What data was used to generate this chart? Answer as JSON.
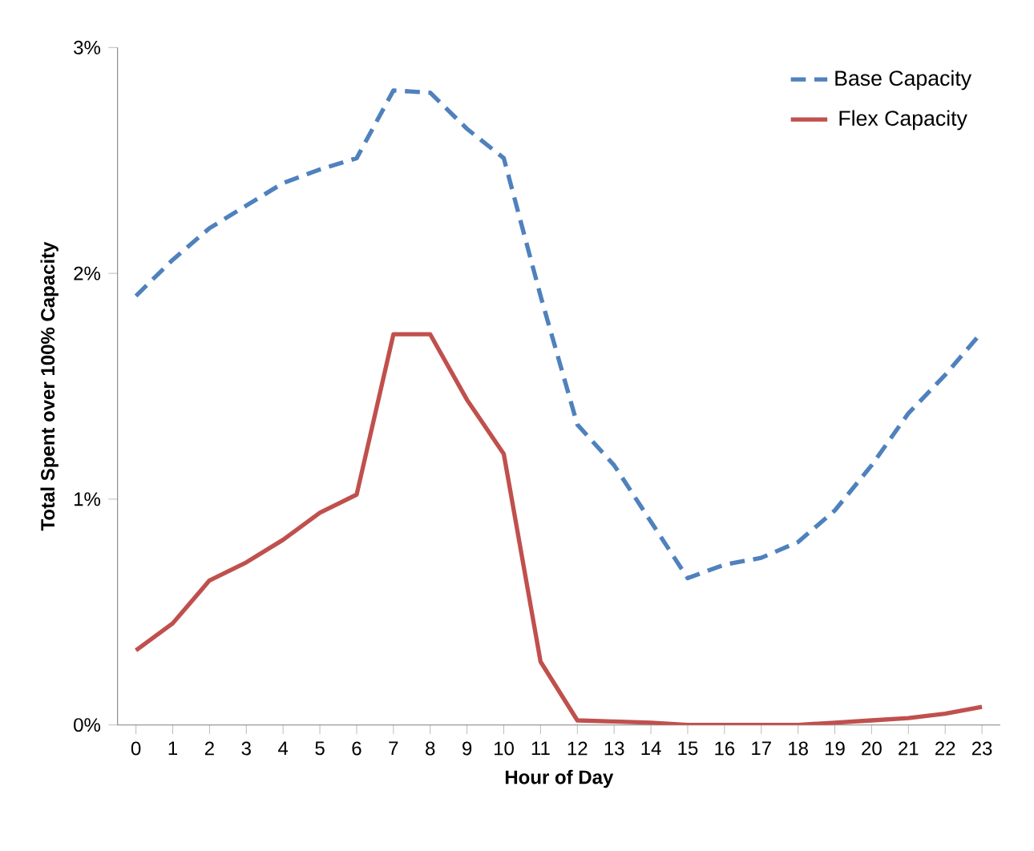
{
  "chart_data": {
    "type": "line",
    "xlabel": "Hour of Day",
    "ylabel": "Total Spent over 100% Capacity",
    "categories": [
      "0",
      "1",
      "2",
      "3",
      "4",
      "5",
      "6",
      "7",
      "8",
      "9",
      "10",
      "11",
      "12",
      "13",
      "14",
      "15",
      "16",
      "17",
      "18",
      "19",
      "20",
      "21",
      "22",
      "23"
    ],
    "series": [
      {
        "name": "Base Capacity",
        "color": "#4f81bd",
        "line_style": "dashed",
        "values": [
          1.9,
          2.06,
          2.2,
          2.3,
          2.4,
          2.46,
          2.51,
          2.81,
          2.8,
          2.64,
          2.51,
          1.9,
          1.33,
          1.15,
          0.9,
          0.65,
          0.71,
          0.74,
          0.81,
          0.95,
          1.15,
          1.38,
          1.55,
          1.74
        ]
      },
      {
        "name": "Flex Capacity",
        "color": "#c0504d",
        "line_style": "solid",
        "values": [
          0.33,
          0.45,
          0.64,
          0.72,
          0.82,
          0.94,
          1.02,
          1.73,
          1.73,
          1.44,
          1.2,
          0.28,
          0.02,
          0.015,
          0.01,
          0,
          0,
          0,
          0,
          0.01,
          0.02,
          0.03,
          0.05,
          0.08
        ]
      }
    ],
    "ylim": [
      0,
      3
    ],
    "yticks": [
      {
        "value": 0,
        "label": "0%"
      },
      {
        "value": 1,
        "label": "1%"
      },
      {
        "value": 2,
        "label": "2%"
      },
      {
        "value": 3,
        "label": "3%"
      }
    ],
    "grid": false,
    "legend": "top right",
    "marker": "none"
  }
}
